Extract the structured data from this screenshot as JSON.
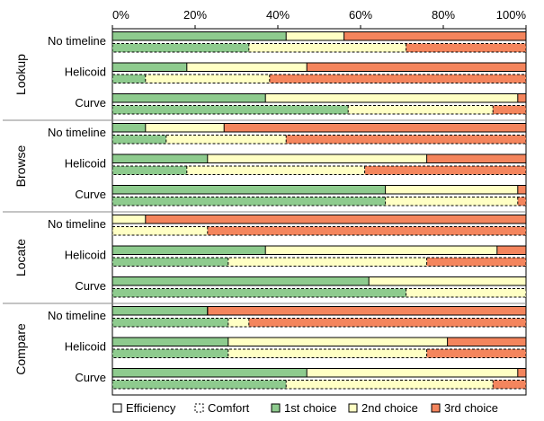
{
  "colors": {
    "first": "#8ecb8e",
    "second": "#ffffc4",
    "third": "#f4855d",
    "stroke": "#000000",
    "divider": "#888888"
  },
  "chart_data": {
    "type": "bar",
    "orientation": "horizontal",
    "stacked": true,
    "normalized": true,
    "xlim": [
      0,
      100
    ],
    "xticks": [
      "0%",
      "20%",
      "40%",
      "60%",
      "80%",
      "100%"
    ],
    "grid": false,
    "legend_position": "bottom",
    "legend": [
      {
        "key": "efficiency",
        "label": "Efficiency",
        "style": "solid-outline"
      },
      {
        "key": "comfort",
        "label": "Comfort",
        "style": "dashed-outline"
      },
      {
        "key": "first",
        "label": "1st choice",
        "style": "fill"
      },
      {
        "key": "second",
        "label": "2nd choice",
        "style": "fill"
      },
      {
        "key": "third",
        "label": "3rd choice",
        "style": "fill"
      }
    ],
    "stack_order": [
      "first",
      "second",
      "third"
    ],
    "groups": [
      {
        "task": "Lookup",
        "rows": [
          {
            "category": "No timeline",
            "efficiency": [
              42,
              14,
              44
            ],
            "comfort": [
              33,
              38,
              29
            ]
          },
          {
            "category": "Helicoid",
            "efficiency": [
              18,
              29,
              53
            ],
            "comfort": [
              8,
              30,
              62
            ]
          },
          {
            "category": "Curve",
            "efficiency": [
              37,
              61,
              2
            ],
            "comfort": [
              57,
              35,
              8
            ]
          }
        ]
      },
      {
        "task": "Browse",
        "rows": [
          {
            "category": "No timeline",
            "efficiency": [
              8,
              19,
              73
            ],
            "comfort": [
              13,
              29,
              58
            ]
          },
          {
            "category": "Helicoid",
            "efficiency": [
              23,
              53,
              24
            ],
            "comfort": [
              18,
              43,
              39
            ]
          },
          {
            "category": "Curve",
            "efficiency": [
              66,
              32,
              2
            ],
            "comfort": [
              66,
              32,
              2
            ]
          }
        ]
      },
      {
        "task": "Locate",
        "rows": [
          {
            "category": "No timeline",
            "efficiency": [
              0,
              8,
              92
            ],
            "comfort": [
              0,
              23,
              77
            ]
          },
          {
            "category": "Helicoid",
            "efficiency": [
              37,
              56,
              7
            ],
            "comfort": [
              28,
              48,
              24
            ]
          },
          {
            "category": "Curve",
            "efficiency": [
              62,
              38,
              0
            ],
            "comfort": [
              71,
              29,
              0
            ]
          }
        ]
      },
      {
        "task": "Compare",
        "rows": [
          {
            "category": "No timeline",
            "efficiency": [
              23,
              0,
              77
            ],
            "comfort": [
              28,
              5,
              67
            ]
          },
          {
            "category": "Helicoid",
            "efficiency": [
              28,
              53,
              19
            ],
            "comfort": [
              28,
              48,
              24
            ]
          },
          {
            "category": "Curve",
            "efficiency": [
              47,
              51,
              2
            ],
            "comfort": [
              42,
              50,
              8
            ]
          }
        ]
      }
    ]
  }
}
